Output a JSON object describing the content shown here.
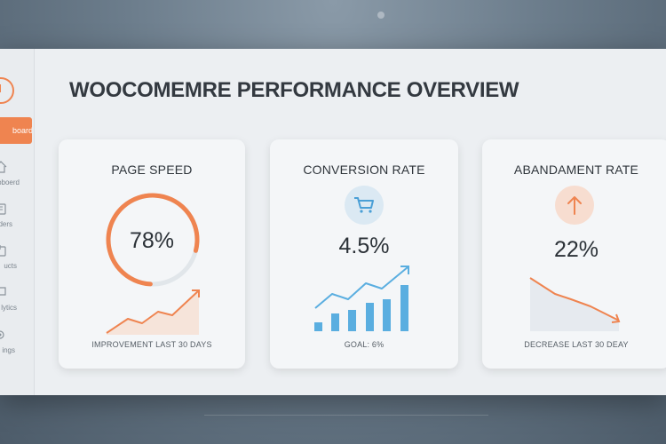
{
  "page": {
    "title": "WOOCOMEMRE PERFORMANCE OVERVIEW"
  },
  "sidebar": {
    "active_label": "board",
    "items": [
      {
        "label": "oboerd",
        "icon": "home-icon"
      },
      {
        "label": "ders",
        "icon": "orders-icon"
      },
      {
        "label": "ucts",
        "icon": "products-icon"
      },
      {
        "label": "lytics",
        "icon": "analytics-icon"
      },
      {
        "label": "ings",
        "icon": "settings-icon"
      }
    ]
  },
  "cards": {
    "page_speed": {
      "title": "PAGE SPEED",
      "value": "78%",
      "progress": 0.78,
      "footer": "IMPROVEMENT LAST 30 DAYS"
    },
    "conversion": {
      "title": "CONVERSION RATE",
      "value": "4.5%",
      "icon": "cart-icon",
      "footer": "GOAL: 6%"
    },
    "abandonment": {
      "title": "ABANDAMENT RATE",
      "value": "22%",
      "icon": "arrow-up-icon",
      "footer": "DECREASE LAST 30 DEAY"
    }
  },
  "colors": {
    "accent": "#ef8450",
    "blue": "#5aaee0",
    "ring_track": "#e1e6ea"
  }
}
